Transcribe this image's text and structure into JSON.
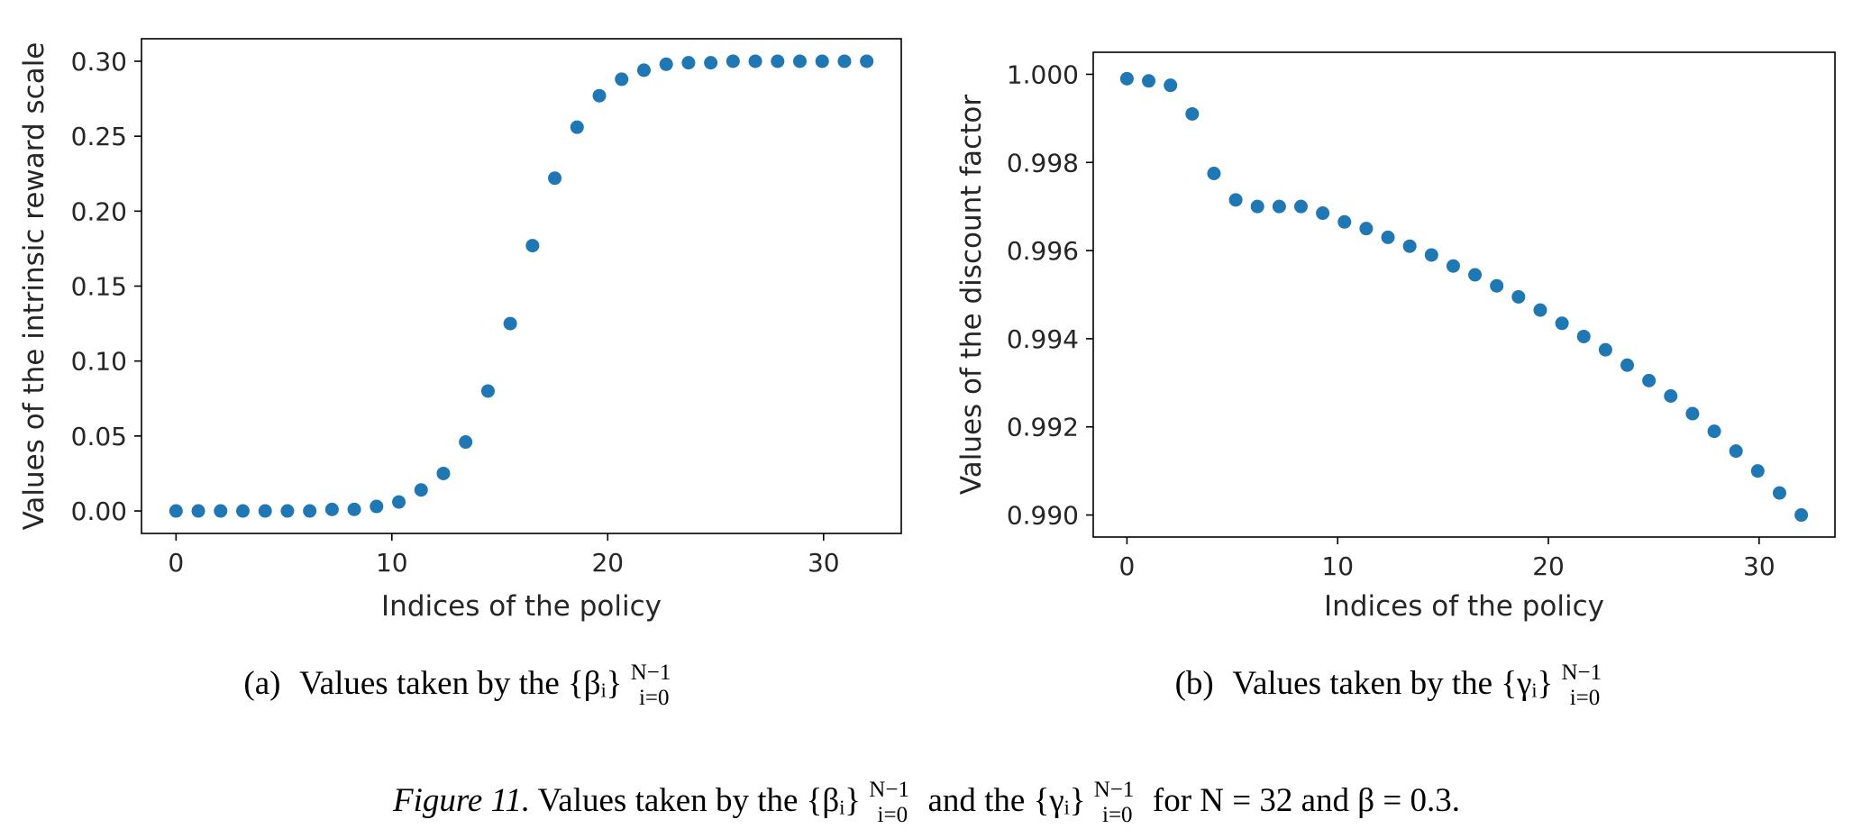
{
  "figure": {
    "caption_label": "Figure 11.",
    "caption_text": " Values taken by the {βᵢ}",
    "caption_sub": "i=0",
    "caption_sup": "N−1",
    "caption_mid": " and the {γᵢ}",
    "caption_tail": " for N = 32 and β = 0.3."
  },
  "chart_data": [
    {
      "type": "scatter",
      "caption_prefix": "(a)",
      "caption_text": "Values taken by the {βᵢ}",
      "caption_sub": "i=0",
      "caption_sup": "N−1",
      "xlabel": "Indices of the policy",
      "ylabel": "Values of the intrinsic reward scale",
      "xlim": [
        -1.6,
        33.6
      ],
      "ylim": [
        -0.015,
        0.315
      ],
      "xticks": [
        0,
        10,
        20,
        30
      ],
      "xtick_labels": [
        "0",
        "10",
        "20",
        "30"
      ],
      "yticks": [
        0.0,
        0.05,
        0.1,
        0.15,
        0.2,
        0.25,
        0.3
      ],
      "ytick_labels": [
        "0.00",
        "0.05",
        "0.10",
        "0.15",
        "0.20",
        "0.25",
        "0.30"
      ],
      "grid": false,
      "color": "#1f77b4",
      "x": [
        0,
        1.032,
        2.065,
        3.097,
        4.129,
        5.161,
        6.194,
        7.226,
        8.258,
        9.29,
        10.323,
        11.355,
        12.387,
        13.419,
        14.452,
        15.484,
        16.516,
        17.548,
        18.581,
        19.613,
        20.645,
        21.677,
        22.71,
        23.742,
        24.774,
        25.806,
        26.839,
        27.871,
        28.903,
        29.935,
        30.968,
        32
      ],
      "y": [
        0.0,
        0.0,
        0.0,
        0.0,
        0.0,
        0.0,
        0.0,
        0.001,
        0.001,
        0.003,
        0.006,
        0.014,
        0.025,
        0.046,
        0.08,
        0.125,
        0.177,
        0.222,
        0.256,
        0.277,
        0.288,
        0.294,
        0.298,
        0.299,
        0.299,
        0.3,
        0.3,
        0.3,
        0.3,
        0.3,
        0.3,
        0.3
      ]
    },
    {
      "type": "scatter",
      "caption_prefix": "(b)",
      "caption_text": "Values taken by the {γᵢ}",
      "caption_sub": "i=0",
      "caption_sup": "N−1",
      "xlabel": "Indices of the policy",
      "ylabel": "Values of the discount factor",
      "xlim": [
        -1.6,
        33.6
      ],
      "ylim": [
        0.9895,
        1.0005
      ],
      "xticks": [
        0,
        10,
        20,
        30
      ],
      "xtick_labels": [
        "0",
        "10",
        "20",
        "30"
      ],
      "yticks": [
        0.99,
        0.992,
        0.994,
        0.996,
        0.998,
        1.0
      ],
      "ytick_labels": [
        "0.990",
        "0.992",
        "0.994",
        "0.996",
        "0.998",
        "1.000"
      ],
      "grid": false,
      "color": "#1f77b4",
      "x": [
        0,
        1.032,
        2.065,
        3.097,
        4.129,
        5.161,
        6.194,
        7.226,
        8.258,
        9.29,
        10.323,
        11.355,
        12.387,
        13.419,
        14.452,
        15.484,
        16.516,
        17.548,
        18.581,
        19.613,
        20.645,
        21.677,
        22.71,
        23.742,
        24.774,
        25.806,
        26.839,
        27.871,
        28.903,
        29.935,
        30.968,
        32
      ],
      "y": [
        0.9999,
        0.99985,
        0.99975,
        0.9991,
        0.99775,
        0.99715,
        0.997,
        0.997,
        0.997,
        0.99685,
        0.99665,
        0.9965,
        0.9963,
        0.9961,
        0.9959,
        0.99565,
        0.99545,
        0.9952,
        0.99495,
        0.99465,
        0.99435,
        0.99405,
        0.99375,
        0.9934,
        0.99305,
        0.9927,
        0.9923,
        0.9919,
        0.99145,
        0.991,
        0.9905,
        0.99
      ]
    }
  ]
}
